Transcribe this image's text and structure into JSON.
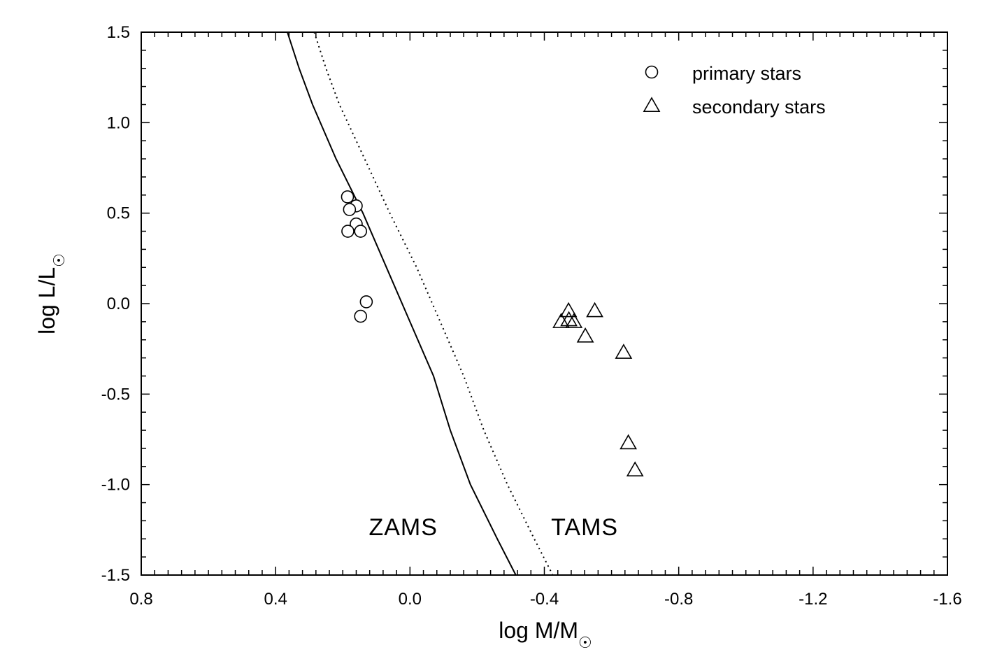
{
  "chart_data": {
    "type": "scatter",
    "xlabel": {
      "main": "log M/M",
      "sub": "☉"
    },
    "ylabel": {
      "main": "log L/L",
      "sub": "☉"
    },
    "xlim": [
      0.8,
      -1.6
    ],
    "ylim": [
      -1.5,
      1.5
    ],
    "x_axis_reversed": true,
    "x_ticks": [
      0.8,
      0.4,
      0.0,
      -0.4,
      -0.8,
      -1.2,
      -1.6
    ],
    "x_tick_labels": [
      "0.8",
      "0.4",
      "0.0",
      "-0.4",
      "-0.8",
      "-1.2",
      "-1.6"
    ],
    "y_ticks": [
      1.5,
      1.0,
      0.5,
      0.0,
      -0.5,
      -1.0,
      -1.5
    ],
    "y_tick_labels": [
      "1.5",
      "1.0",
      "0.5",
      "0.0",
      "-0.5",
      "-1.0",
      "-1.5"
    ],
    "grid": false,
    "legend_position": "top-right",
    "series": [
      {
        "name": "primary stars",
        "marker": "circle",
        "points": [
          {
            "x": 0.186,
            "y": 0.59
          },
          {
            "x": 0.16,
            "y": 0.54
          },
          {
            "x": 0.18,
            "y": 0.52
          },
          {
            "x": 0.16,
            "y": 0.44
          },
          {
            "x": 0.185,
            "y": 0.4
          },
          {
            "x": 0.147,
            "y": 0.4
          },
          {
            "x": 0.13,
            "y": 0.01
          },
          {
            "x": 0.147,
            "y": -0.07
          }
        ]
      },
      {
        "name": "secondary stars",
        "marker": "triangle",
        "points": [
          {
            "x": -0.45,
            "y": -0.1
          },
          {
            "x": -0.472,
            "y": -0.04
          },
          {
            "x": -0.473,
            "y": -0.09
          },
          {
            "x": -0.488,
            "y": -0.1
          },
          {
            "x": -0.55,
            "y": -0.04
          },
          {
            "x": -0.522,
            "y": -0.18
          },
          {
            "x": -0.636,
            "y": -0.27
          },
          {
            "x": -0.65,
            "y": -0.77
          },
          {
            "x": -0.67,
            "y": -0.92
          }
        ]
      }
    ],
    "curves": [
      {
        "label": "ZAMS",
        "style": "solid",
        "points": [
          [
            0.365,
            1.5
          ],
          [
            0.33,
            1.3
          ],
          [
            0.29,
            1.1
          ],
          [
            0.22,
            0.8
          ],
          [
            0.14,
            0.5
          ],
          [
            0.07,
            0.2
          ],
          [
            0.0,
            -0.1
          ],
          [
            -0.07,
            -0.4
          ],
          [
            -0.12,
            -0.7
          ],
          [
            -0.18,
            -1.0
          ],
          [
            -0.26,
            -1.3
          ],
          [
            -0.315,
            -1.5
          ]
        ]
      },
      {
        "label": "TAMS",
        "style": "dotted",
        "points": [
          [
            0.285,
            1.5
          ],
          [
            0.25,
            1.3
          ],
          [
            0.21,
            1.1
          ],
          [
            0.135,
            0.8
          ],
          [
            0.06,
            0.5
          ],
          [
            -0.02,
            0.2
          ],
          [
            -0.09,
            -0.1
          ],
          [
            -0.16,
            -0.4
          ],
          [
            -0.22,
            -0.7
          ],
          [
            -0.29,
            -1.0
          ],
          [
            -0.37,
            -1.3
          ],
          [
            -0.425,
            -1.5
          ]
        ]
      }
    ],
    "annotations": [
      {
        "text": "ZAMS",
        "x": 0.02,
        "y": -1.28
      },
      {
        "text": "TAMS",
        "x": -0.52,
        "y": -1.28
      }
    ]
  }
}
